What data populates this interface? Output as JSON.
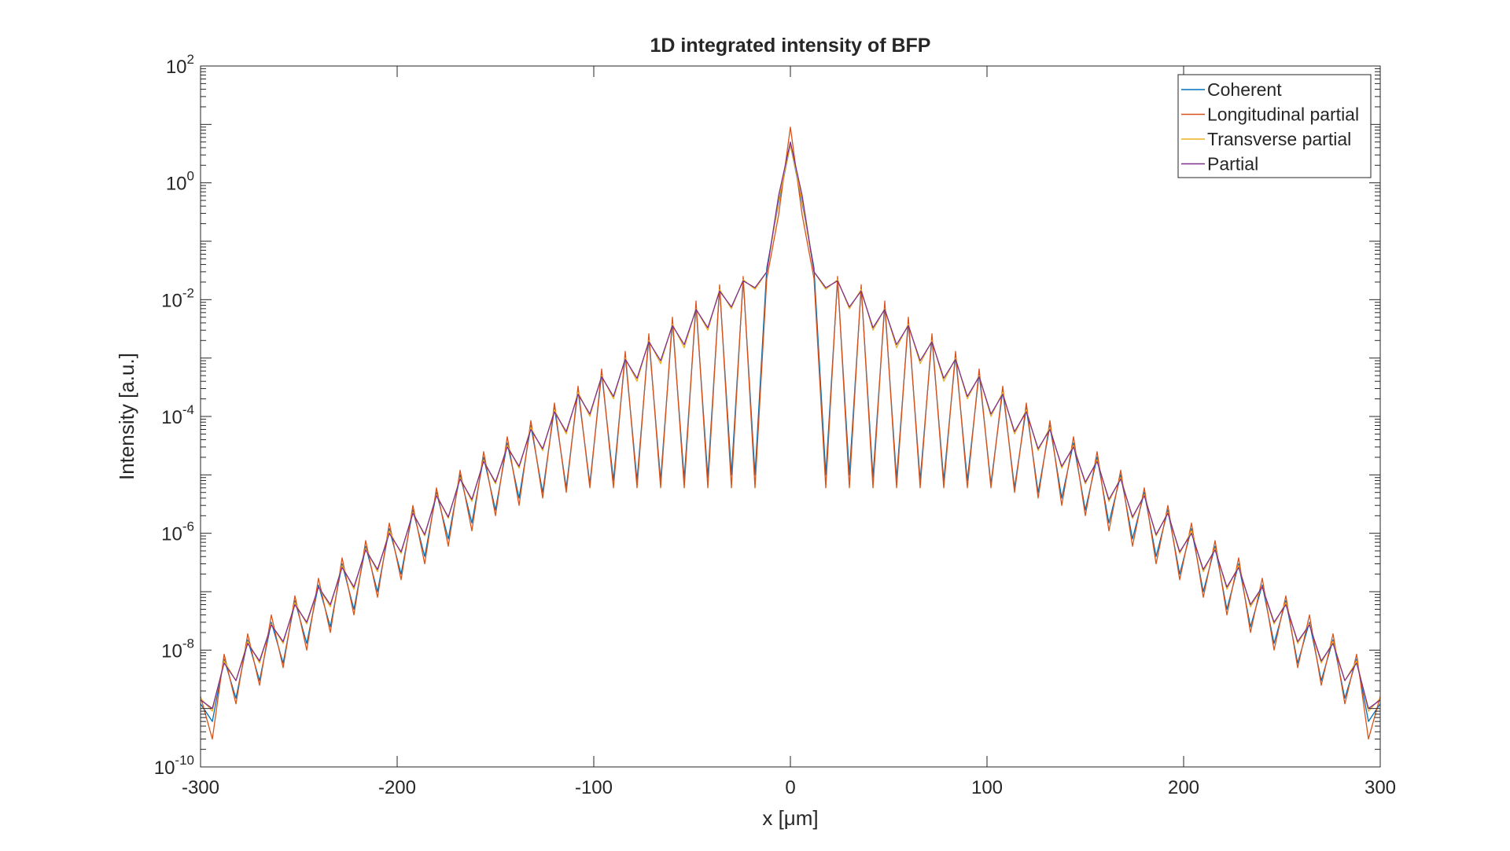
{
  "chart_data": {
    "type": "line",
    "title": "1D integrated intensity of BFP",
    "xlabel": "x [μm]",
    "ylabel": "Intensity [a.u.]",
    "y_scale": "log",
    "xlim": [
      -300,
      300
    ],
    "ylim": [
      1e-10,
      100
    ],
    "grid": false,
    "legend_position": "top-right",
    "x_ticks": [
      {
        "value": -300,
        "label": "-300"
      },
      {
        "value": -200,
        "label": "-200"
      },
      {
        "value": -100,
        "label": "-100"
      },
      {
        "value": 0,
        "label": "0"
      },
      {
        "value": 100,
        "label": "100"
      },
      {
        "value": 200,
        "label": "200"
      },
      {
        "value": 300,
        "label": "300"
      }
    ],
    "y_ticks": [
      {
        "value": 1e-10,
        "base": "10",
        "exp": "-10"
      },
      {
        "value": 1e-08,
        "base": "10",
        "exp": "-8"
      },
      {
        "value": 1e-06,
        "base": "10",
        "exp": "-6"
      },
      {
        "value": 0.0001,
        "base": "10",
        "exp": "-4"
      },
      {
        "value": 0.01,
        "base": "10",
        "exp": "-2"
      },
      {
        "value": 1,
        "base": "10",
        "exp": "0"
      },
      {
        "value": 100,
        "base": "10",
        "exp": "2"
      }
    ],
    "x": [
      -300,
      -294,
      -288,
      -282,
      -276,
      -270,
      -264,
      -258,
      -252,
      -246,
      -240,
      -234,
      -228,
      -222,
      -216,
      -210,
      -204,
      -198,
      -192,
      -186,
      -180,
      -174,
      -168,
      -162,
      -156,
      -150,
      -144,
      -138,
      -132,
      -126,
      -120,
      -114,
      -108,
      -102,
      -96,
      -90,
      -84,
      -78,
      -72,
      -66,
      -60,
      -54,
      -48,
      -42,
      -36,
      -30,
      -24,
      -18,
      -12,
      -6,
      0,
      6,
      12,
      18,
      24,
      30,
      36,
      42,
      48,
      54,
      60,
      66,
      72,
      78,
      84,
      90,
      96,
      102,
      108,
      114,
      120,
      126,
      132,
      138,
      144,
      150,
      156,
      162,
      168,
      174,
      180,
      186,
      192,
      198,
      204,
      210,
      216,
      222,
      228,
      234,
      240,
      246,
      252,
      258,
      264,
      270,
      276,
      282,
      288,
      294,
      300
    ],
    "series": [
      {
        "name": "Coherent",
        "color": "#0072BD",
        "values": [
          1.2e-09,
          6e-10,
          7e-09,
          1.5e-09,
          1.5e-08,
          3e-09,
          3e-08,
          6e-09,
          7e-08,
          1.3e-08,
          1.3e-07,
          2.5e-08,
          3e-07,
          5e-08,
          6e-07,
          1e-07,
          1.2e-06,
          2e-07,
          2.5e-06,
          4e-07,
          5e-06,
          8e-07,
          1e-05,
          1.5e-06,
          2e-05,
          2.5e-06,
          3.5e-05,
          4e-06,
          7e-05,
          5e-06,
          0.00014,
          6e-06,
          0.00028,
          7e-06,
          0.00055,
          8e-06,
          0.0011,
          8e-06,
          0.0022,
          8e-06,
          0.0042,
          8.5e-06,
          0.008,
          9e-06,
          0.016,
          1e-05,
          0.022,
          1e-05,
          0.035,
          0.45,
          4.5,
          0.45,
          0.035,
          1e-05,
          0.022,
          1e-05,
          0.016,
          9e-06,
          0.008,
          8.5e-06,
          0.0042,
          8e-06,
          0.0022,
          8e-06,
          0.0011,
          8e-06,
          0.00055,
          7e-06,
          0.00028,
          6e-06,
          0.00014,
          5e-06,
          7e-05,
          4e-06,
          3.5e-05,
          2.5e-06,
          2e-05,
          1.5e-06,
          1e-05,
          8e-07,
          5e-06,
          4e-07,
          2.5e-06,
          2e-07,
          1.2e-06,
          1e-07,
          6e-07,
          5e-08,
          3e-07,
          2.5e-08,
          1.3e-07,
          1.3e-08,
          7e-08,
          6e-09,
          3e-08,
          3e-09,
          1.5e-08,
          1.5e-09,
          7e-09,
          6e-10,
          1.2e-09
        ]
      },
      {
        "name": "Longitudinal partial",
        "color": "#D95319",
        "values": [
          1.6e-09,
          3e-10,
          8.5e-09,
          1.2e-09,
          1.9e-08,
          2.5e-09,
          4e-08,
          5e-09,
          8.5e-08,
          1e-08,
          1.7e-07,
          2e-08,
          3.8e-07,
          4e-08,
          7.5e-07,
          8e-08,
          1.5e-06,
          1.6e-07,
          3e-06,
          3e-07,
          6e-06,
          6e-07,
          1.2e-05,
          1.1e-06,
          2.5e-05,
          2e-06,
          4.5e-05,
          3e-06,
          8.5e-05,
          4e-06,
          0.00017,
          5e-06,
          0.00033,
          6e-06,
          0.00065,
          6e-06,
          0.0013,
          6e-06,
          0.0026,
          6e-06,
          0.005,
          6e-06,
          0.0095,
          6e-06,
          0.018,
          6e-06,
          0.025,
          6e-06,
          0.023,
          0.28,
          9.0,
          0.28,
          0.023,
          6e-06,
          0.025,
          6e-06,
          0.018,
          6e-06,
          0.0095,
          6e-06,
          0.005,
          6e-06,
          0.0026,
          6e-06,
          0.0013,
          6e-06,
          0.00065,
          6e-06,
          0.00033,
          5e-06,
          0.00017,
          4e-06,
          8.5e-05,
          3e-06,
          4.5e-05,
          2e-06,
          2.5e-05,
          1.1e-06,
          1.2e-05,
          6e-07,
          6e-06,
          3e-07,
          3e-06,
          1.6e-07,
          1.5e-06,
          8e-08,
          7.5e-07,
          4e-08,
          3.8e-07,
          2e-08,
          1.7e-07,
          1e-08,
          8.5e-08,
          5e-09,
          4e-08,
          2.5e-09,
          1.9e-08,
          1.2e-09,
          8.5e-09,
          3e-10,
          1.6e-09
        ]
      },
      {
        "name": "Transverse partial",
        "color": "#EDB120",
        "values": [
          1.5e-09,
          9e-10,
          6.5e-09,
          3e-09,
          1.4e-08,
          6e-09,
          2.8e-08,
          1.3e-08,
          6.5e-08,
          2.8e-08,
          1.2e-07,
          5.5e-08,
          2.8e-07,
          1.1e-07,
          5.5e-07,
          2.2e-07,
          1.1e-06,
          4.5e-07,
          2.3e-06,
          9e-07,
          4.6e-06,
          1.8e-06,
          9e-06,
          3.5e-06,
          1.8e-05,
          7e-06,
          3.2e-05,
          1.3e-05,
          6.5e-05,
          2.6e-05,
          0.00013,
          5e-05,
          0.00026,
          0.0001,
          0.0005,
          0.0002,
          0.001,
          0.0004,
          0.002,
          0.0008,
          0.0038,
          0.0015,
          0.007,
          0.003,
          0.015,
          0.007,
          0.022,
          0.015,
          0.03,
          0.5,
          4.5,
          0.5,
          0.03,
          0.015,
          0.022,
          0.007,
          0.015,
          0.003,
          0.007,
          0.0015,
          0.0038,
          0.0008,
          0.002,
          0.0004,
          0.001,
          0.0002,
          0.0005,
          0.0001,
          0.00026,
          5e-05,
          0.00013,
          2.6e-05,
          6.5e-05,
          1.3e-05,
          3.2e-05,
          7e-06,
          1.8e-05,
          3.5e-06,
          9e-06,
          1.8e-06,
          4.6e-06,
          9e-07,
          2.3e-06,
          4.5e-07,
          1.1e-06,
          2.2e-07,
          5.5e-07,
          1.1e-07,
          2.8e-07,
          5.5e-08,
          1.2e-07,
          2.8e-08,
          6.5e-08,
          1.3e-08,
          2.8e-08,
          6e-09,
          1.4e-08,
          3e-09,
          6.5e-09,
          9e-10,
          1.5e-09
        ]
      },
      {
        "name": "Partial",
        "color": "#7E2F8E",
        "values": [
          1.4e-09,
          1e-09,
          6e-09,
          3e-09,
          1.3e-08,
          6.5e-09,
          2.7e-08,
          1.4e-08,
          6e-08,
          3e-08,
          1.2e-07,
          6e-08,
          2.6e-07,
          1.2e-07,
          5.2e-07,
          2.4e-07,
          1e-06,
          4.8e-07,
          2.2e-06,
          9.5e-07,
          4.4e-06,
          1.9e-06,
          8.5e-06,
          3.8e-06,
          1.7e-05,
          7.5e-06,
          3e-05,
          1.4e-05,
          6e-05,
          2.8e-05,
          0.00012,
          5.5e-05,
          0.00024,
          0.00011,
          0.00048,
          0.00022,
          0.00095,
          0.00045,
          0.0019,
          0.0009,
          0.0036,
          0.0017,
          0.0068,
          0.0033,
          0.014,
          0.0075,
          0.021,
          0.016,
          0.03,
          0.6,
          5.0,
          0.6,
          0.03,
          0.016,
          0.021,
          0.0075,
          0.014,
          0.0033,
          0.0068,
          0.0017,
          0.0036,
          0.0009,
          0.0019,
          0.00045,
          0.00095,
          0.00022,
          0.00048,
          0.00011,
          0.00024,
          5.5e-05,
          0.00012,
          2.8e-05,
          6e-05,
          1.4e-05,
          3e-05,
          7.5e-06,
          1.7e-05,
          3.8e-06,
          8.5e-06,
          1.9e-06,
          4.4e-06,
          9.5e-07,
          2.2e-06,
          4.8e-07,
          1e-06,
          2.4e-07,
          5.2e-07,
          1.2e-07,
          2.6e-07,
          6e-08,
          1.2e-07,
          3e-08,
          6e-08,
          1.4e-08,
          2.7e-08,
          6.5e-09,
          1.3e-08,
          3e-09,
          6e-09,
          1e-09,
          1.4e-09
        ]
      }
    ]
  }
}
